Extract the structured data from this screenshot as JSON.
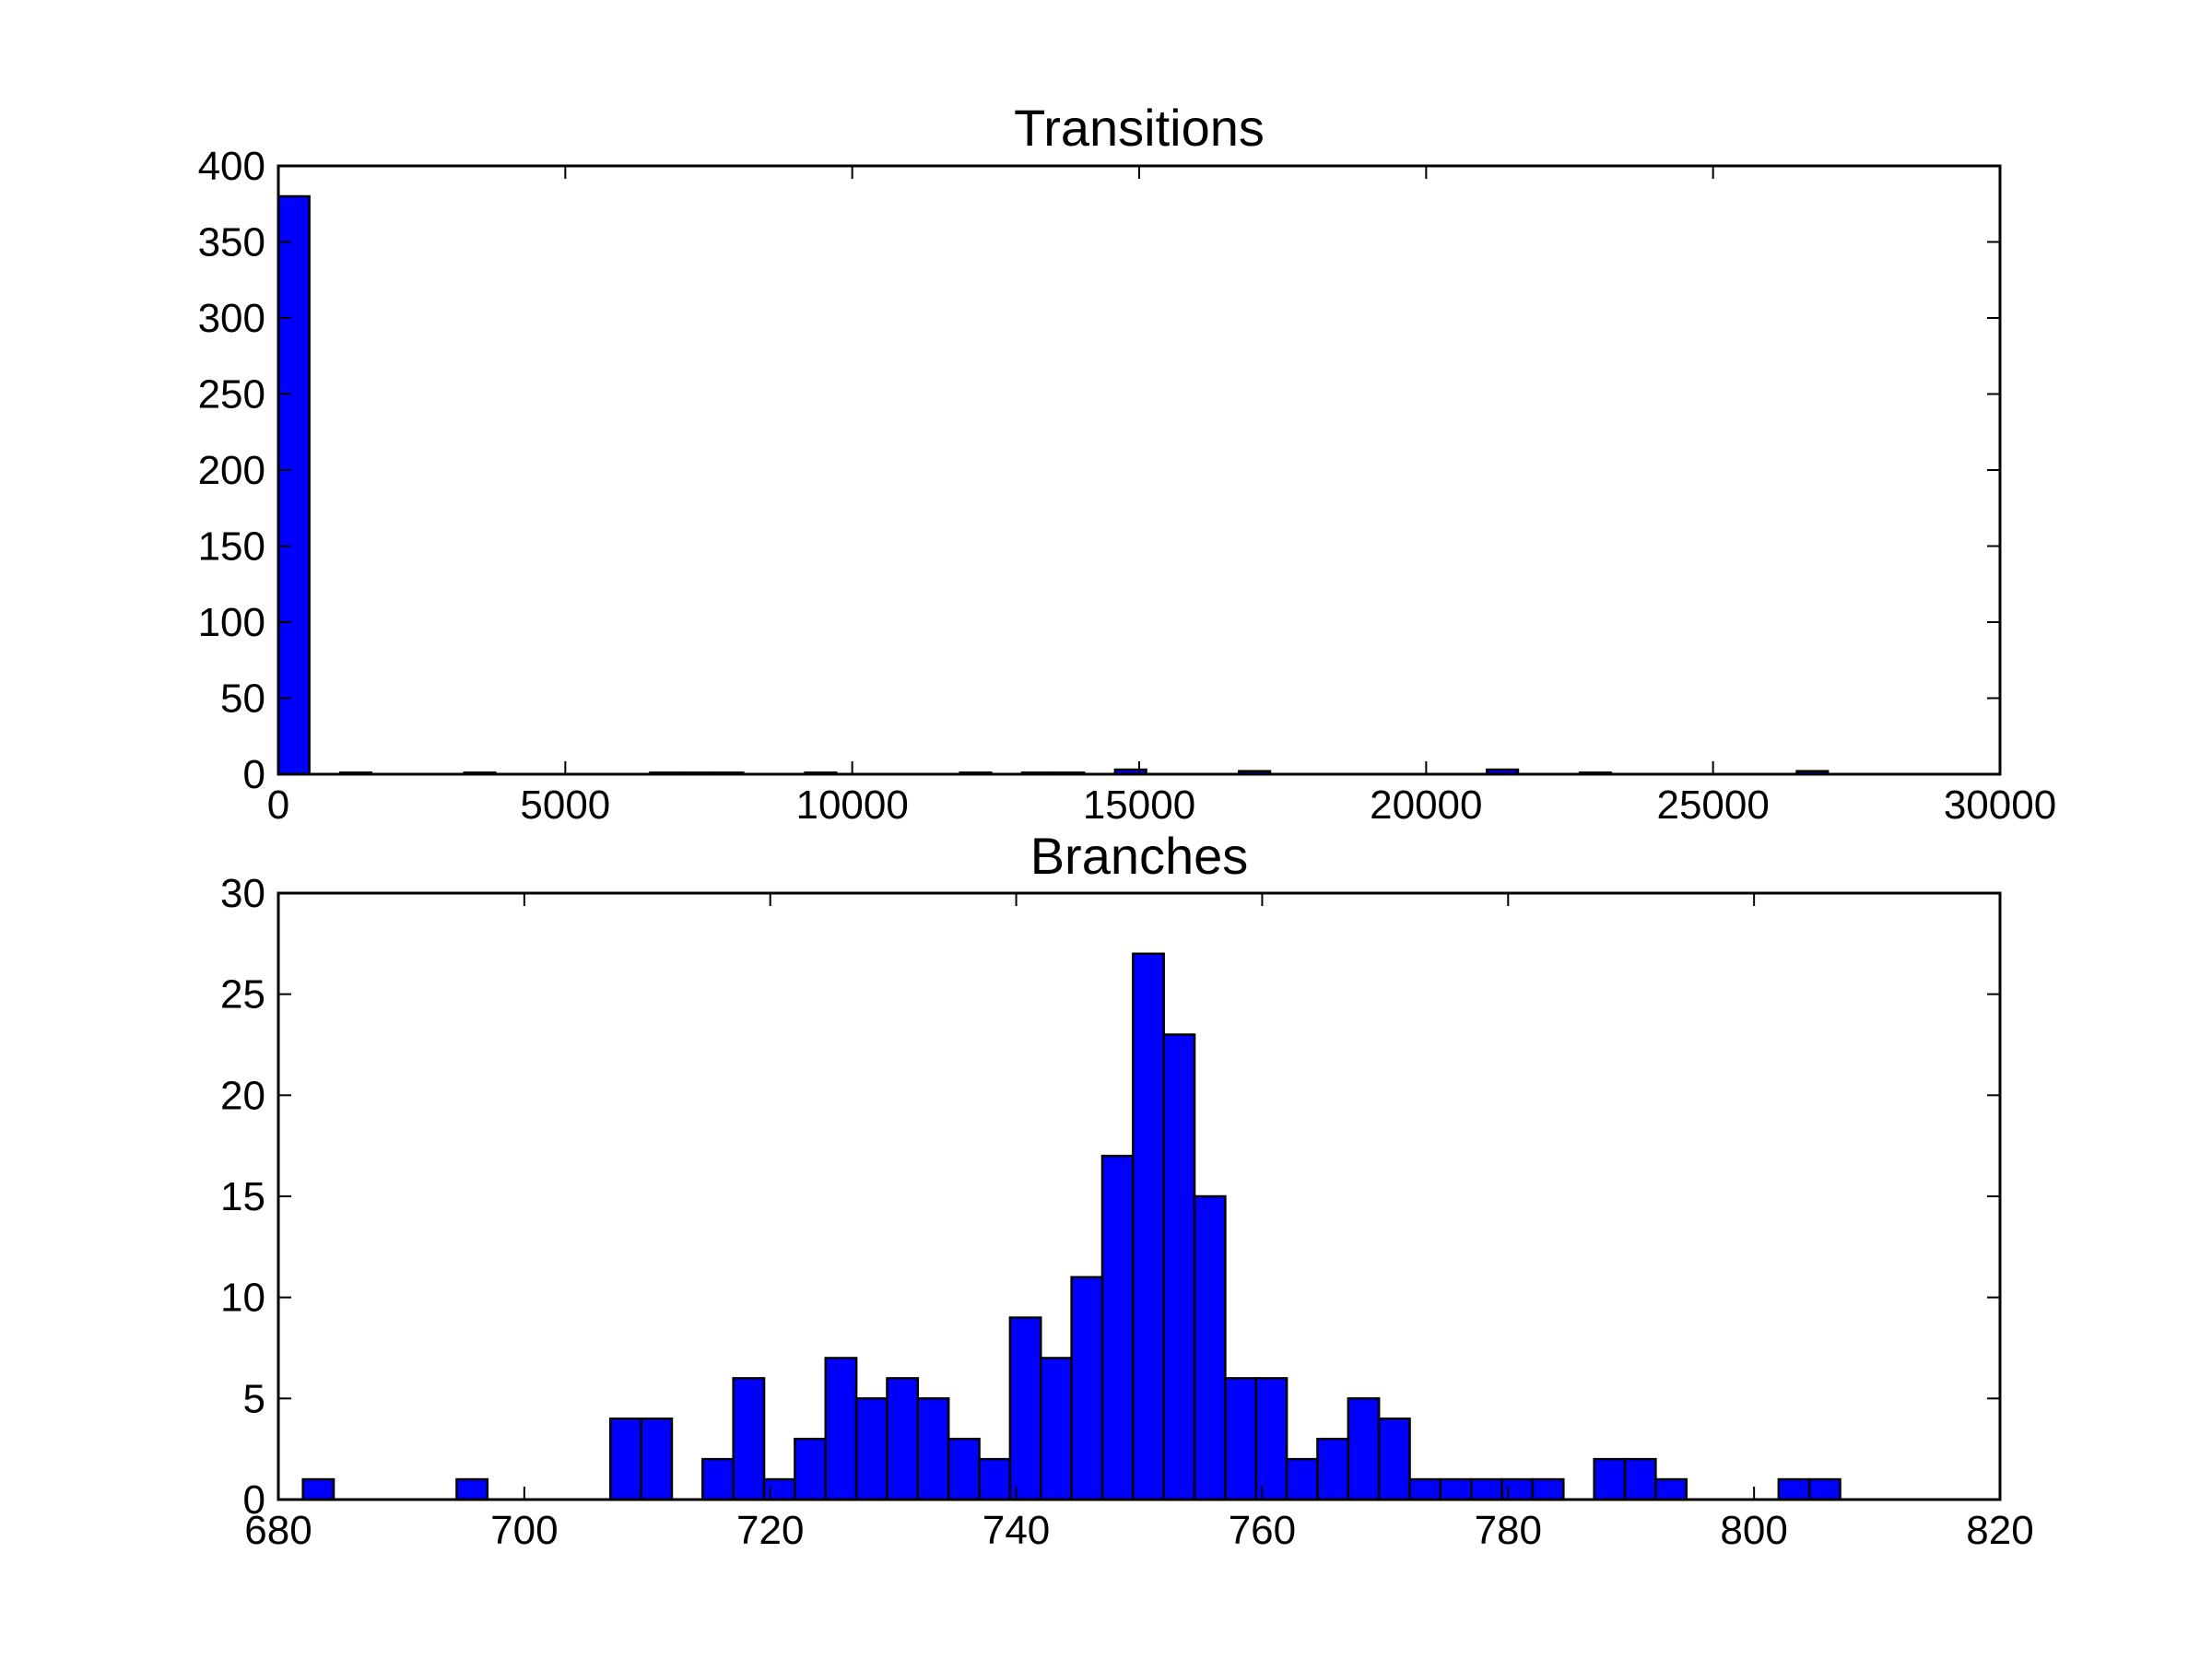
{
  "chart_data": [
    {
      "type": "bar",
      "title": "Transitions",
      "xlabel": "",
      "ylabel": "",
      "xlim": [
        0,
        30000
      ],
      "ylim": [
        0,
        400
      ],
      "xticks": [
        "0",
        "5000",
        "10000",
        "15000",
        "20000",
        "25000",
        "30000"
      ],
      "yticks": [
        "0",
        "50",
        "100",
        "150",
        "200",
        "250",
        "300",
        "350",
        "400"
      ],
      "grid": false,
      "bar_color": "#0000ff",
      "bin_width": 540,
      "x": [
        0,
        1080,
        3240,
        6480,
        7020,
        7560,
        9180,
        11880,
        12960,
        13500,
        14580,
        16740,
        21060,
        22680,
        26460
      ],
      "values": [
        380,
        1,
        1,
        1,
        1,
        1,
        1,
        1,
        1,
        1,
        3,
        2,
        3,
        1,
        2
      ]
    },
    {
      "type": "bar",
      "title": "Branches",
      "xlabel": "",
      "ylabel": "",
      "xlim": [
        680,
        820
      ],
      "ylim": [
        0,
        30
      ],
      "xticks": [
        "680",
        "700",
        "720",
        "740",
        "760",
        "780",
        "800",
        "820"
      ],
      "yticks": [
        "0",
        "5",
        "10",
        "15",
        "20",
        "25",
        "30"
      ],
      "grid": false,
      "bar_color": "#0000ff",
      "bin_width": 2.5,
      "x": [
        682,
        694.5,
        707,
        709.5,
        714.5,
        717,
        719.5,
        722,
        724.5,
        727,
        729.5,
        732,
        734.5,
        737,
        739.5,
        742,
        744.5,
        747,
        749.5,
        752,
        754.5,
        757,
        759.5,
        762,
        764.5,
        767,
        769.5,
        772,
        774.5,
        777,
        779.5,
        782,
        787,
        789.5,
        792,
        802,
        804.5
      ],
      "values": [
        1,
        1,
        4,
        4,
        2,
        6,
        1,
        3,
        7,
        5,
        6,
        5,
        3,
        2,
        9,
        7,
        11,
        17,
        27,
        23,
        15,
        6,
        6,
        2,
        3,
        5,
        4,
        1,
        1,
        1,
        1,
        1,
        2,
        2,
        1,
        1,
        1
      ]
    }
  ]
}
